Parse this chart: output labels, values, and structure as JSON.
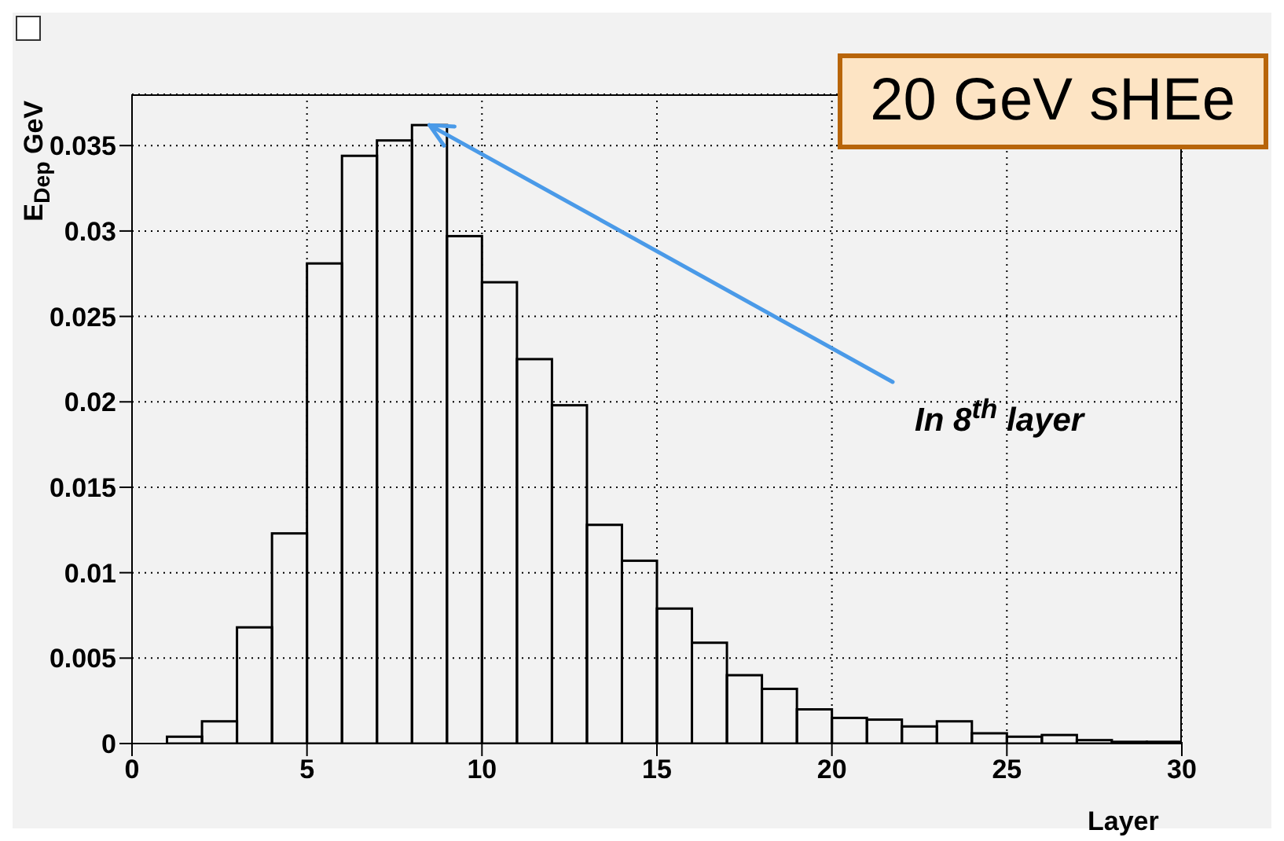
{
  "chart_data": {
    "type": "histogram",
    "title": "20 GeV sHEe",
    "xlabel": "Layer",
    "ylabel": "E$_{Dep}$ GeV",
    "bins": [
      0,
      1,
      2,
      3,
      4,
      5,
      6,
      7,
      8,
      9,
      10,
      11,
      12,
      13,
      14,
      15,
      16,
      17,
      18,
      19,
      20,
      21,
      22,
      23,
      24,
      25,
      26,
      27,
      28,
      29,
      30
    ],
    "values": [
      0,
      0.0004,
      0.0013,
      0.0068,
      0.0123,
      0.0281,
      0.0344,
      0.0353,
      0.0362,
      0.0297,
      0.027,
      0.0225,
      0.0198,
      0.0128,
      0.0107,
      0.0079,
      0.0059,
      0.004,
      0.0032,
      0.002,
      0.0015,
      0.0014,
      0.001,
      0.0013,
      0.0006,
      0.0004,
      0.0005,
      0.0002,
      0.0001,
      0.0001
    ],
    "color": "#000000",
    "xlim": [
      0,
      30
    ],
    "xticks": [
      0,
      5,
      10,
      15,
      20,
      25,
      30
    ],
    "ylim": [
      0,
      0.038
    ],
    "yticks": [
      0,
      0.005,
      0.01,
      0.015,
      0.02,
      0.025,
      0.03,
      0.035
    ],
    "grid": true,
    "annotations": [
      {
        "text": "In 8$^{th}$ layer",
        "x": 8.5,
        "y": 0.0362
      }
    ]
  }
}
